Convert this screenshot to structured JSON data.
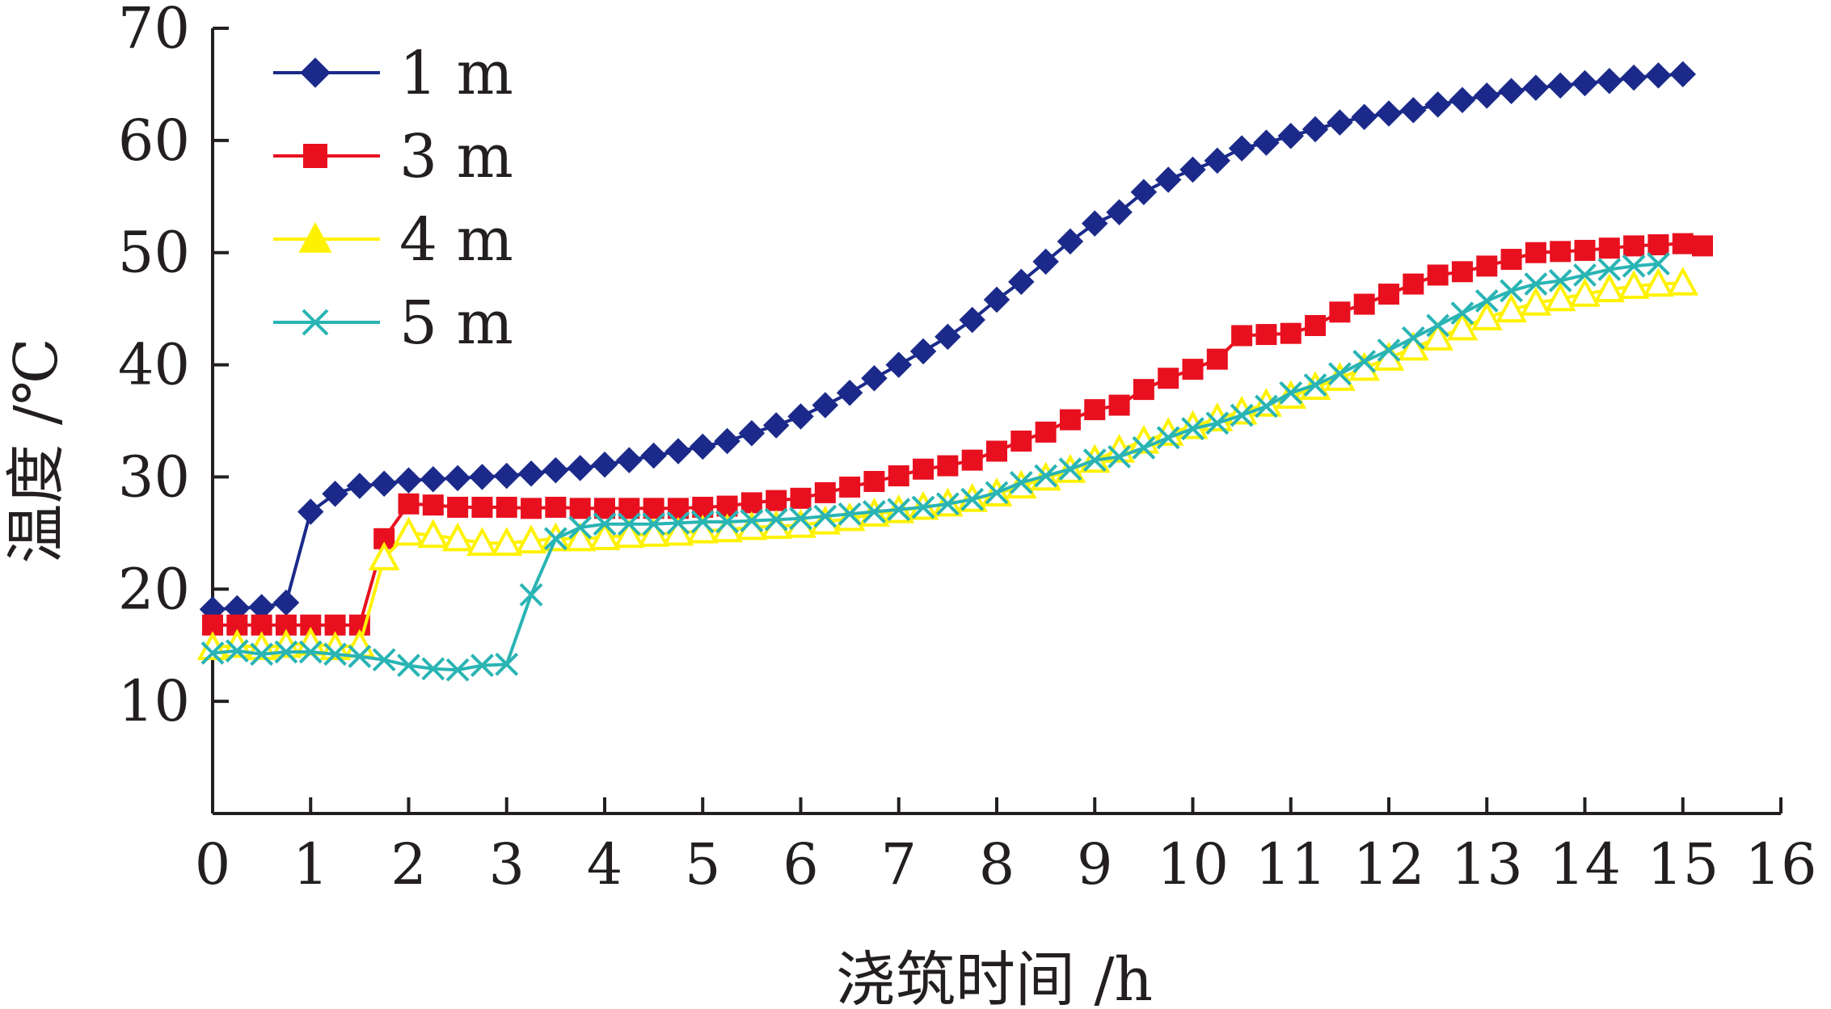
{
  "chart_data": {
    "type": "line",
    "title": "",
    "xlabel": "浇筑时间 /h",
    "ylabel": "温度 /℃",
    "xlim": [
      0,
      16
    ],
    "ylim": [
      0,
      70
    ],
    "x_ticks": [
      "0",
      "1",
      "2",
      "3",
      "4",
      "5",
      "6",
      "7",
      "8",
      "9",
      "10",
      "11",
      "12",
      "13",
      "14",
      "15",
      "16"
    ],
    "y_ticks": [
      "10",
      "20",
      "30",
      "40",
      "50",
      "60",
      "70"
    ],
    "grid": false,
    "legend_position": "top-left",
    "series": [
      {
        "name": "1 m",
        "color": "#1b2a8a",
        "marker": "diamond",
        "x": [
          0,
          0.25,
          0.5,
          0.75,
          1,
          1.25,
          1.5,
          1.75,
          2,
          2.25,
          2.5,
          2.75,
          3,
          3.25,
          3.5,
          3.75,
          4,
          4.25,
          4.5,
          4.75,
          5,
          5.25,
          5.5,
          5.75,
          6,
          6.25,
          6.5,
          6.75,
          7,
          7.25,
          7.5,
          7.75,
          8,
          8.25,
          8.5,
          8.75,
          9,
          9.25,
          9.5,
          9.75,
          10,
          10.25,
          10.5,
          10.75,
          11,
          11.25,
          11.5,
          11.75,
          12,
          12.25,
          12.5,
          12.75,
          13,
          13.25,
          13.5,
          13.75,
          14,
          14.25,
          14.5,
          14.75,
          15
        ],
        "y": [
          18.2,
          18.3,
          18.4,
          18.8,
          26.9,
          28.5,
          29.2,
          29.4,
          29.7,
          29.8,
          29.9,
          30.0,
          30.1,
          30.3,
          30.6,
          30.8,
          31.1,
          31.5,
          31.9,
          32.3,
          32.7,
          33.2,
          33.9,
          34.6,
          35.4,
          36.4,
          37.5,
          38.8,
          40.0,
          41.2,
          42.5,
          44.0,
          45.8,
          47.4,
          49.2,
          51.0,
          52.6,
          53.6,
          55.4,
          56.5,
          57.4,
          58.2,
          59.3,
          59.8,
          60.4,
          61.0,
          61.6,
          62.1,
          62.4,
          62.7,
          63.2,
          63.6,
          64.0,
          64.4,
          64.7,
          64.9,
          65.1,
          65.3,
          65.6,
          65.8,
          65.9
        ]
      },
      {
        "name": "3 m",
        "color": "#e8101f",
        "marker": "square",
        "x": [
          0,
          0.25,
          0.5,
          0.75,
          1,
          1.25,
          1.5,
          1.75,
          2,
          2.25,
          2.5,
          2.75,
          3,
          3.25,
          3.5,
          3.75,
          4,
          4.25,
          4.5,
          4.75,
          5,
          5.25,
          5.5,
          5.75,
          6,
          6.25,
          6.5,
          6.75,
          7,
          7.25,
          7.5,
          7.75,
          8,
          8.25,
          8.5,
          8.75,
          9,
          9.25,
          9.5,
          9.75,
          10,
          10.25,
          10.5,
          10.75,
          11,
          11.25,
          11.5,
          11.75,
          12,
          12.25,
          12.5,
          12.75,
          13,
          13.25,
          13.5,
          13.75,
          14,
          14.25,
          14.5,
          14.75,
          15,
          15.2
        ],
        "y": [
          16.8,
          16.8,
          16.8,
          16.8,
          16.8,
          16.8,
          16.8,
          24.5,
          27.6,
          27.5,
          27.3,
          27.3,
          27.3,
          27.2,
          27.3,
          27.2,
          27.2,
          27.2,
          27.2,
          27.2,
          27.3,
          27.4,
          27.7,
          27.9,
          28.1,
          28.6,
          29.1,
          29.6,
          30.1,
          30.7,
          31.0,
          31.5,
          32.3,
          33.2,
          34.0,
          35.1,
          36.0,
          36.4,
          37.8,
          38.8,
          39.6,
          40.5,
          42.6,
          42.7,
          42.8,
          43.5,
          44.7,
          45.4,
          46.3,
          47.2,
          48.0,
          48.3,
          48.8,
          49.4,
          50.0,
          50.1,
          50.2,
          50.4,
          50.6,
          50.7,
          50.8,
          50.6
        ]
      },
      {
        "name": "4 m",
        "color": "#fff200",
        "marker": "triangle",
        "x": [
          0,
          0.25,
          0.5,
          0.75,
          1,
          1.25,
          1.5,
          1.75,
          2,
          2.25,
          2.5,
          2.75,
          3,
          3.25,
          3.5,
          3.75,
          4,
          4.25,
          4.5,
          4.75,
          5,
          5.25,
          5.5,
          5.75,
          6,
          6.25,
          6.5,
          6.75,
          7,
          7.25,
          7.5,
          7.75,
          8,
          8.25,
          8.5,
          8.75,
          9,
          9.25,
          9.5,
          9.75,
          10,
          10.25,
          10.5,
          10.75,
          11,
          11.25,
          11.5,
          11.75,
          12,
          12.25,
          12.5,
          12.75,
          13,
          13.25,
          13.5,
          13.75,
          14,
          14.25,
          14.5,
          14.75,
          15
        ],
        "y": [
          14.8,
          15.0,
          14.8,
          15.0,
          15.2,
          14.8,
          15.0,
          22.8,
          25.0,
          24.8,
          24.5,
          24.1,
          24.1,
          24.3,
          24.5,
          24.5,
          24.6,
          24.8,
          24.9,
          25.0,
          25.2,
          25.3,
          25.5,
          25.6,
          25.7,
          26.0,
          26.3,
          26.7,
          27.0,
          27.3,
          27.6,
          28.0,
          28.5,
          29.2,
          29.9,
          30.6,
          31.5,
          32.4,
          33.2,
          33.9,
          34.5,
          35.2,
          35.8,
          36.5,
          37.2,
          38.0,
          38.8,
          39.7,
          40.6,
          41.5,
          42.4,
          43.3,
          44.2,
          44.9,
          45.5,
          45.9,
          46.3,
          46.7,
          47.0,
          47.2,
          47.3
        ]
      },
      {
        "name": "5 m",
        "color": "#2ab4b4",
        "marker": "x",
        "x": [
          0,
          0.25,
          0.5,
          0.75,
          1,
          1.25,
          1.5,
          1.75,
          2,
          2.25,
          2.5,
          2.75,
          3,
          3.25,
          3.5,
          3.75,
          4,
          4.25,
          4.5,
          4.75,
          5,
          5.25,
          5.5,
          5.75,
          6,
          6.25,
          6.5,
          6.75,
          7,
          7.25,
          7.5,
          7.75,
          8,
          8.25,
          8.5,
          8.75,
          9,
          9.25,
          9.5,
          9.75,
          10,
          10.25,
          10.5,
          10.75,
          11,
          11.25,
          11.5,
          11.75,
          12,
          12.25,
          12.5,
          12.75,
          13,
          13.25,
          13.5,
          13.75,
          14,
          14.25,
          14.5,
          14.75
        ],
        "y": [
          14.3,
          14.5,
          14.2,
          14.4,
          14.4,
          14.2,
          14.0,
          13.7,
          13.2,
          12.9,
          12.8,
          13.2,
          13.3,
          19.5,
          24.5,
          25.5,
          25.8,
          25.8,
          25.8,
          25.9,
          26.0,
          26.0,
          26.1,
          26.2,
          26.3,
          26.5,
          26.7,
          26.9,
          27.1,
          27.3,
          27.6,
          28.0,
          28.6,
          29.5,
          30.1,
          30.7,
          31.5,
          31.8,
          32.6,
          33.5,
          34.3,
          34.8,
          35.5,
          36.3,
          37.5,
          38.2,
          39.2,
          40.3,
          41.3,
          42.4,
          43.5,
          44.6,
          45.7,
          46.6,
          47.2,
          47.5,
          48.0,
          48.5,
          48.8,
          49.0
        ]
      }
    ]
  }
}
